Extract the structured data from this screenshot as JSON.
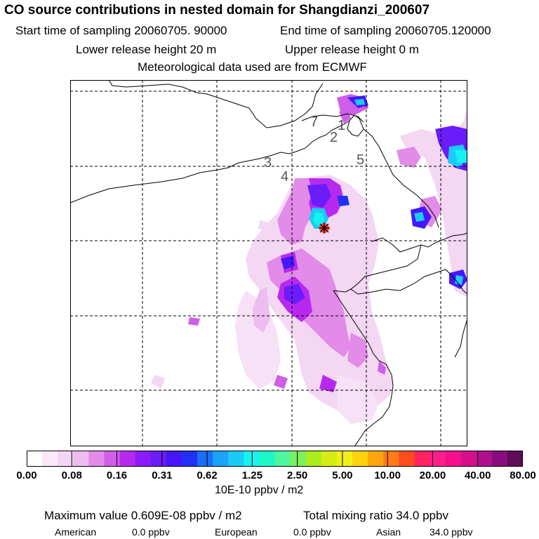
{
  "header": {
    "title": "CO  source contributions in nested domain for Shangdianzi_200607",
    "start_time": "Start time of sampling 20060705. 90000",
    "end_time": "End time of sampling 20060705.120000",
    "lower_release": "Lower release height   20 m",
    "upper_release": "Upper release height    0 m",
    "met_data": "Meteorological data used are from ECMWF"
  },
  "map": {
    "region_labels": [
      "7",
      "1",
      "2",
      "3",
      "4",
      "5"
    ],
    "receptor_marker": "star-icon",
    "grid": true
  },
  "colorbar": {
    "colors": [
      "#ffffff",
      "#fbe9fb",
      "#f5d5f5",
      "#eebdef",
      "#e28be8",
      "#cf5ee8",
      "#b829f0",
      "#8c1cf7",
      "#6a1cf9",
      "#4517fa",
      "#2130f7",
      "#1b6ff7",
      "#1aa3f9",
      "#1bcbf5",
      "#16f2ef",
      "#1cf9c6",
      "#4ff6a0",
      "#7bf05e",
      "#a9ee1c",
      "#d4ee14",
      "#f2ef18",
      "#ffd20f",
      "#ffa60f",
      "#ff7b16",
      "#ff4c1e",
      "#ff2460",
      "#ff1e8c",
      "#f4108c",
      "#d40f8b",
      "#b0108c",
      "#8a0c7c",
      "#5e0c58"
    ],
    "ticks": [
      "0.00",
      "0.08",
      "0.16",
      "0.31",
      "0.62",
      "1.25",
      "2.50",
      "5.00",
      "10.00",
      "20.00",
      "40.00",
      "80.00"
    ],
    "unit": "10E-10 ppbv / m2"
  },
  "summary": {
    "max_value": "Maximum value  0.609E-08 ppbv / m2",
    "total_mixing": "Total mixing ratio      34.0 ppbv",
    "regions": [
      {
        "name": "American",
        "value": "0.0 ppbv"
      },
      {
        "name": "European",
        "value": "0.0 ppbv"
      },
      {
        "name": "Asian",
        "value": "34.0 ppbv"
      }
    ]
  }
}
